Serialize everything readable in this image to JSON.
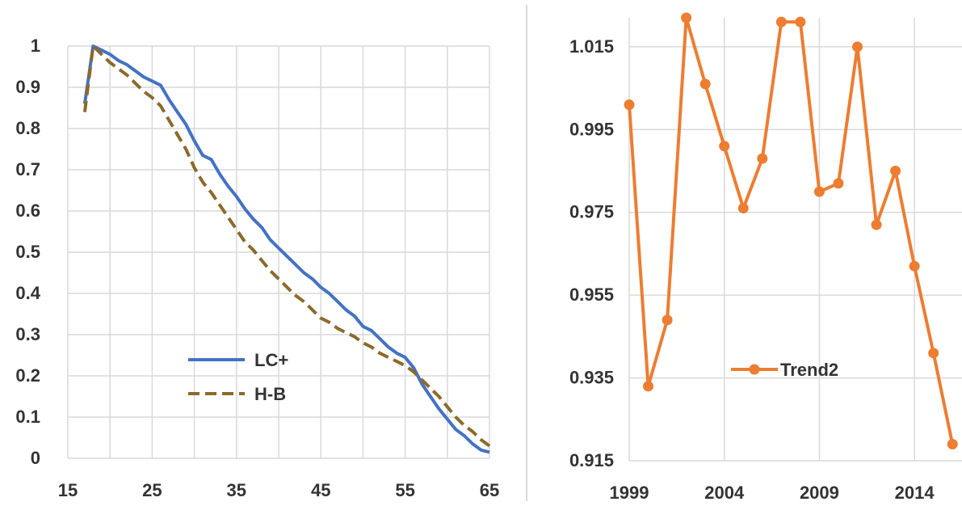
{
  "chart_data": [
    {
      "type": "line",
      "title": "",
      "xlabel": "",
      "ylabel": "",
      "xlim": [
        15,
        65
      ],
      "ylim": [
        0,
        1
      ],
      "grid": true,
      "legend_position": "bottom-center",
      "x_ticks": [
        "15",
        "25",
        "35",
        "45",
        "55",
        "65"
      ],
      "y_ticks": [
        "0",
        "0.1",
        "0.2",
        "0.3",
        "0.4",
        "0.5",
        "0.6",
        "0.7",
        "0.8",
        "0.9",
        "1"
      ],
      "series": [
        {
          "name": "LC+",
          "color": "#4472C4",
          "style": "solid",
          "x": [
            17,
            18,
            19,
            20,
            21,
            22,
            23,
            24,
            25,
            26,
            27,
            28,
            29,
            30,
            31,
            32,
            33,
            34,
            35,
            36,
            37,
            38,
            39,
            40,
            41,
            42,
            43,
            44,
            45,
            46,
            47,
            48,
            49,
            50,
            51,
            52,
            53,
            54,
            55,
            56,
            57,
            58,
            59,
            60,
            61,
            62,
            63,
            64,
            65
          ],
          "y": [
            0.86,
            1.0,
            0.99,
            0.98,
            0.965,
            0.955,
            0.94,
            0.925,
            0.915,
            0.905,
            0.87,
            0.84,
            0.81,
            0.77,
            0.735,
            0.725,
            0.69,
            0.66,
            0.635,
            0.605,
            0.58,
            0.56,
            0.53,
            0.51,
            0.49,
            0.47,
            0.45,
            0.435,
            0.415,
            0.4,
            0.38,
            0.36,
            0.345,
            0.32,
            0.31,
            0.29,
            0.27,
            0.255,
            0.245,
            0.22,
            0.18,
            0.15,
            0.12,
            0.095,
            0.07,
            0.055,
            0.035,
            0.02,
            0.015
          ]
        },
        {
          "name": "H-B",
          "color": "#8B6A2B",
          "style": "dashed",
          "x": [
            17,
            18,
            19,
            20,
            21,
            22,
            23,
            24,
            25,
            26,
            27,
            28,
            29,
            30,
            31,
            32,
            33,
            34,
            35,
            36,
            37,
            38,
            39,
            40,
            41,
            42,
            43,
            44,
            45,
            46,
            47,
            48,
            49,
            50,
            51,
            52,
            53,
            54,
            55,
            56,
            57,
            58,
            59,
            60,
            61,
            62,
            63,
            64,
            65
          ],
          "y": [
            0.84,
            1.0,
            0.98,
            0.96,
            0.945,
            0.93,
            0.91,
            0.89,
            0.875,
            0.855,
            0.82,
            0.785,
            0.75,
            0.705,
            0.67,
            0.645,
            0.615,
            0.585,
            0.555,
            0.525,
            0.505,
            0.48,
            0.455,
            0.435,
            0.415,
            0.395,
            0.38,
            0.36,
            0.34,
            0.33,
            0.315,
            0.305,
            0.295,
            0.28,
            0.27,
            0.255,
            0.245,
            0.235,
            0.225,
            0.21,
            0.19,
            0.17,
            0.15,
            0.125,
            0.1,
            0.08,
            0.065,
            0.045,
            0.03
          ]
        }
      ]
    },
    {
      "type": "line",
      "title": "",
      "xlabel": "",
      "ylabel": "",
      "xlim": [
        1999,
        2016.5
      ],
      "ylim": [
        0.915,
        1.022
      ],
      "grid": true,
      "legend_position": "bottom-center",
      "x_ticks": [
        "1999",
        "2004",
        "2009",
        "2014"
      ],
      "y_ticks": [
        "0.915",
        "0.935",
        "0.955",
        "0.975",
        "0.995",
        "1.015"
      ],
      "series": [
        {
          "name": "Trend2",
          "color": "#ED7D31",
          "style": "solid-markers",
          "x": [
            1999,
            2000,
            2001,
            2002,
            2003,
            2004,
            2005,
            2006,
            2007,
            2008,
            2009,
            2010,
            2011,
            2012,
            2013,
            2014,
            2015,
            2016
          ],
          "y": [
            1.001,
            0.933,
            0.949,
            1.022,
            1.006,
            0.991,
            0.976,
            0.988,
            1.021,
            1.021,
            0.98,
            0.982,
            1.015,
            0.972,
            0.985,
            0.962,
            0.941,
            0.919
          ]
        }
      ]
    }
  ]
}
